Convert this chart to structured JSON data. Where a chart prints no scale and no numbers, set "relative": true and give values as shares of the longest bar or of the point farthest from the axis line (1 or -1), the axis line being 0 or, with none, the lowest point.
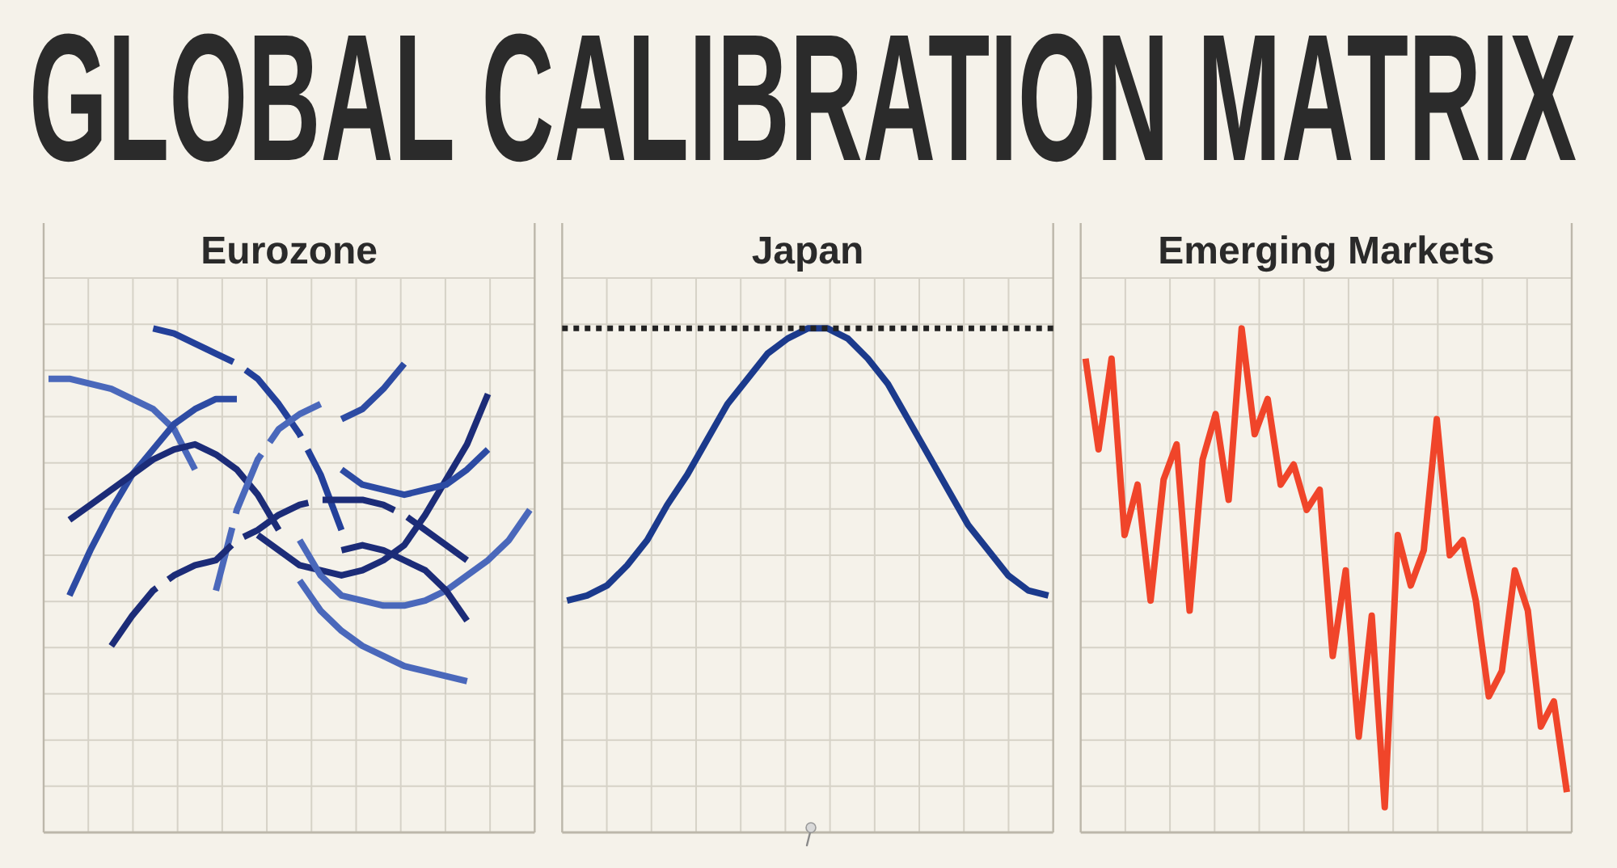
{
  "chart_data": [
    {
      "type": "line",
      "title": "GLOBAL CALIBRATION MATRIX",
      "subtitle": "Eurozone",
      "relative": true,
      "grid": true,
      "categories": [
        null,
        null,
        null,
        null,
        null,
        null,
        null,
        null,
        null,
        null,
        null,
        null,
        null,
        null,
        null,
        null,
        null,
        null,
        null,
        null,
        null,
        null,
        null,
        null
      ],
      "series": [
        {
          "color": "#4a68bb",
          "values": [
            0.9,
            0.9,
            0.89,
            0.88,
            0.86,
            0.84,
            0.8,
            0.72,
            null,
            null,
            null,
            null,
            null,
            null,
            null,
            null,
            null,
            null,
            null,
            null,
            null,
            null,
            null,
            null
          ]
        },
        {
          "color": "#23409a",
          "line_style": "dashed",
          "values": [
            null,
            null,
            null,
            null,
            null,
            1.0,
            0.99,
            0.97,
            0.95,
            0.93,
            0.9,
            0.85,
            0.79,
            0.71,
            0.6,
            null,
            null,
            null,
            null,
            null,
            null,
            null,
            null,
            null
          ]
        },
        {
          "color": "#2d4ba3",
          "values": [
            null,
            0.47,
            0.56,
            0.64,
            0.71,
            0.76,
            0.81,
            0.84,
            0.86,
            0.86,
            null,
            null,
            null,
            null,
            null,
            null,
            null,
            null,
            null,
            null,
            null,
            null,
            null,
            null
          ]
        },
        {
          "color": "#1c2c78",
          "values": [
            null,
            0.62,
            0.65,
            0.68,
            0.71,
            0.74,
            0.76,
            0.77,
            0.75,
            0.72,
            0.67,
            0.6,
            null,
            null,
            null,
            null,
            null,
            null,
            null,
            null,
            null,
            null,
            null,
            null
          ]
        },
        {
          "color": "#4a68bb",
          "line_style": "dashed",
          "values": [
            null,
            null,
            null,
            null,
            null,
            null,
            null,
            null,
            0.48,
            0.64,
            0.74,
            0.8,
            0.83,
            0.85,
            null,
            null,
            null,
            null,
            null,
            null,
            null,
            null,
            null,
            null
          ]
        },
        {
          "color": "#1c2c78",
          "line_style": "dashed",
          "values": [
            null,
            null,
            null,
            0.37,
            0.43,
            0.48,
            0.51,
            0.53,
            0.54,
            0.58,
            0.6,
            0.63,
            0.65,
            0.66,
            0.66,
            0.66,
            0.65,
            0.63,
            0.6,
            0.57,
            0.54,
            null,
            null,
            null
          ]
        },
        {
          "color": "#2d4ba3",
          "values": [
            null,
            null,
            null,
            null,
            null,
            null,
            null,
            null,
            null,
            null,
            null,
            null,
            null,
            null,
            0.82,
            0.84,
            0.88,
            0.93,
            null,
            null,
            null,
            null,
            null,
            null
          ]
        },
        {
          "color": "#1c2c78",
          "values": [
            null,
            null,
            null,
            null,
            null,
            null,
            null,
            null,
            null,
            null,
            0.59,
            0.56,
            0.53,
            0.52,
            0.51,
            0.52,
            0.54,
            0.57,
            0.63,
            0.7,
            0.77,
            0.87,
            null,
            null
          ]
        },
        {
          "color": "#2d4ba3",
          "values": [
            null,
            null,
            null,
            null,
            null,
            null,
            null,
            null,
            null,
            null,
            null,
            null,
            null,
            null,
            0.72,
            0.69,
            0.68,
            0.67,
            0.68,
            0.69,
            0.72,
            0.76,
            null,
            null
          ]
        },
        {
          "color": "#4a68bb",
          "values": [
            null,
            null,
            null,
            null,
            null,
            null,
            null,
            null,
            null,
            null,
            null,
            null,
            0.58,
            0.51,
            0.47,
            0.46,
            0.45,
            0.45,
            0.46,
            0.48,
            0.51,
            0.54,
            0.58,
            0.64
          ]
        },
        {
          "color": "#1c2c78",
          "values": [
            null,
            null,
            null,
            null,
            null,
            null,
            null,
            null,
            null,
            null,
            null,
            null,
            null,
            null,
            0.56,
            0.57,
            0.56,
            0.54,
            0.52,
            0.48,
            0.42,
            null,
            null,
            null
          ]
        },
        {
          "color": "#4a68bb",
          "values": [
            null,
            null,
            null,
            null,
            null,
            null,
            null,
            null,
            null,
            null,
            null,
            null,
            0.5,
            0.44,
            0.4,
            0.37,
            0.35,
            0.33,
            0.32,
            0.31,
            0.3,
            null,
            null,
            null
          ]
        }
      ]
    },
    {
      "type": "line",
      "title": "Japan",
      "relative": true,
      "grid": true,
      "categories": [
        null,
        null,
        null,
        null,
        null,
        null,
        null,
        null,
        null,
        null,
        null,
        null,
        null,
        null,
        null,
        null,
        null,
        null,
        null,
        null,
        null,
        null,
        null,
        null,
        null
      ],
      "series": [
        {
          "color": "#1b3a8c",
          "values": [
            0.46,
            0.47,
            0.49,
            0.53,
            0.58,
            0.65,
            0.71,
            0.78,
            0.85,
            0.9,
            0.95,
            0.98,
            1.0,
            1.0,
            0.98,
            0.94,
            0.89,
            0.82,
            0.75,
            0.68,
            0.61,
            0.56,
            0.51,
            0.48,
            0.47
          ]
        }
      ],
      "ref_lines": [
        {
          "axis": "y",
          "value": 1.0,
          "color": "#222222",
          "line_style": "dotted"
        }
      ]
    },
    {
      "type": "line",
      "title": "Emerging Markets",
      "relative": true,
      "grid": true,
      "categories": [
        null,
        null,
        null,
        null,
        null,
        null,
        null,
        null,
        null,
        null,
        null,
        null,
        null,
        null,
        null,
        null,
        null,
        null,
        null,
        null,
        null,
        null,
        null,
        null,
        null,
        null,
        null,
        null,
        null,
        null,
        null,
        null,
        null,
        null,
        null,
        null,
        null,
        null
      ],
      "series": [
        {
          "color": "#f0452a",
          "values": [
            0.94,
            0.76,
            0.94,
            0.59,
            0.69,
            0.46,
            0.7,
            0.77,
            0.44,
            0.74,
            0.83,
            0.66,
            1.0,
            0.79,
            0.86,
            0.69,
            0.73,
            0.64,
            0.68,
            0.35,
            0.52,
            0.19,
            0.43,
            0.05,
            0.59,
            0.49,
            0.56,
            0.82,
            0.55,
            0.58,
            0.46,
            0.27,
            0.32,
            0.52,
            0.44,
            0.21,
            0.26,
            0.08
          ]
        }
      ]
    }
  ]
}
